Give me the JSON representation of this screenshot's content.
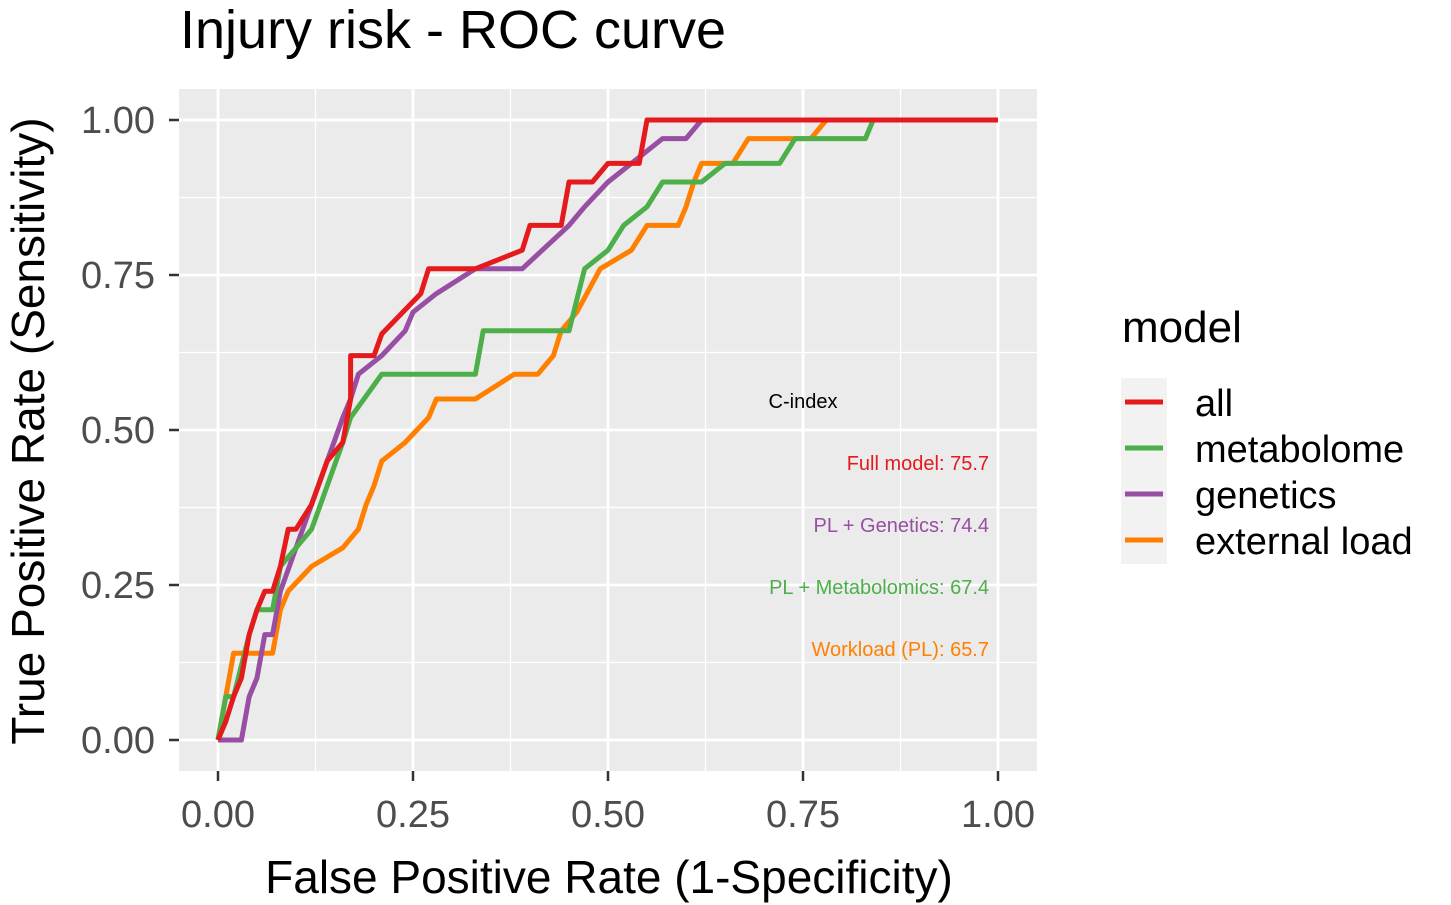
{
  "chart_data": {
    "type": "line",
    "title": "Injury risk - ROC curve",
    "xlabel": "False Positive Rate (1-Specificity)",
    "ylabel": "True Positive Rate (Sensitivity)",
    "xlim": [
      -0.05,
      1.05
    ],
    "ylim": [
      -0.05,
      1.05
    ],
    "xticks": [
      "0.00",
      "0.25",
      "0.50",
      "0.75",
      "1.00"
    ],
    "yticks": [
      "0.00",
      "0.25",
      "0.50",
      "0.75",
      "1.00"
    ],
    "grid": true,
    "legend": {
      "title": "model",
      "position": "right"
    },
    "series": [
      {
        "name": "all",
        "color": "#E41A1C",
        "x": [
          0,
          0.01,
          0.02,
          0.03,
          0.04,
          0.05,
          0.06,
          0.07,
          0.08,
          0.09,
          0.1,
          0.12,
          0.14,
          0.16,
          0.17,
          0.17,
          0.2,
          0.21,
          0.21,
          0.26,
          0.27,
          0.3,
          0.33,
          0.39,
          0.4,
          0.44,
          0.45,
          0.48,
          0.5,
          0.54,
          0.55,
          0.6,
          1.0
        ],
        "y": [
          0,
          0.03,
          0.07,
          0.1,
          0.17,
          0.21,
          0.24,
          0.24,
          0.28,
          0.34,
          0.34,
          0.38,
          0.45,
          0.48,
          0.55,
          0.62,
          0.62,
          0.655,
          0.655,
          0.72,
          0.76,
          0.76,
          0.76,
          0.79,
          0.83,
          0.83,
          0.9,
          0.9,
          0.93,
          0.93,
          1.0,
          1.0,
          1.0
        ]
      },
      {
        "name": "metabolome",
        "color": "#4DAF4A",
        "x": [
          0,
          0.01,
          0.02,
          0.04,
          0.05,
          0.07,
          0.08,
          0.1,
          0.12,
          0.14,
          0.16,
          0.17,
          0.21,
          0.33,
          0.34,
          0.45,
          0.47,
          0.5,
          0.52,
          0.55,
          0.57,
          0.6,
          0.62,
          0.65,
          0.68,
          0.72,
          0.74,
          0.75,
          0.83,
          0.84,
          1.0
        ],
        "y": [
          0,
          0.07,
          0.07,
          0.17,
          0.21,
          0.21,
          0.28,
          0.31,
          0.34,
          0.41,
          0.48,
          0.52,
          0.59,
          0.59,
          0.66,
          0.66,
          0.76,
          0.79,
          0.83,
          0.86,
          0.9,
          0.9,
          0.9,
          0.93,
          0.93,
          0.93,
          0.97,
          0.97,
          0.97,
          1.0,
          1.0
        ]
      },
      {
        "name": "genetics",
        "color": "#984EA3",
        "x": [
          0,
          0.03,
          0.04,
          0.05,
          0.06,
          0.07,
          0.08,
          0.1,
          0.12,
          0.14,
          0.16,
          0.17,
          0.18,
          0.21,
          0.24,
          0.25,
          0.28,
          0.33,
          0.39,
          0.45,
          0.47,
          0.5,
          0.53,
          0.57,
          0.6,
          0.62,
          0.79,
          1.0
        ],
        "y": [
          0,
          0,
          0.07,
          0.1,
          0.17,
          0.17,
          0.24,
          0.31,
          0.38,
          0.45,
          0.52,
          0.55,
          0.59,
          0.62,
          0.66,
          0.69,
          0.72,
          0.76,
          0.76,
          0.83,
          0.86,
          0.9,
          0.93,
          0.97,
          0.97,
          1.0,
          1.0,
          1.0
        ]
      },
      {
        "name": "external load",
        "color": "#FF7F00",
        "x": [
          0,
          0.01,
          0.02,
          0.07,
          0.08,
          0.09,
          0.12,
          0.16,
          0.18,
          0.19,
          0.2,
          0.21,
          0.24,
          0.27,
          0.28,
          0.31,
          0.33,
          0.38,
          0.41,
          0.43,
          0.44,
          0.46,
          0.49,
          0.53,
          0.55,
          0.59,
          0.6,
          0.61,
          0.62,
          0.66,
          0.68,
          0.76,
          0.78,
          0.84,
          1.0
        ],
        "y": [
          0,
          0.07,
          0.14,
          0.14,
          0.21,
          0.24,
          0.28,
          0.31,
          0.34,
          0.38,
          0.41,
          0.45,
          0.48,
          0.52,
          0.55,
          0.55,
          0.55,
          0.59,
          0.59,
          0.62,
          0.66,
          0.69,
          0.76,
          0.79,
          0.83,
          0.83,
          0.86,
          0.9,
          0.93,
          0.93,
          0.97,
          0.97,
          1.0,
          1.0,
          1.0
        ]
      }
    ],
    "annotations": [
      {
        "text": "C-index",
        "color": "#000000"
      },
      {
        "text": "Full model:  75.7",
        "color": "#E41A1C"
      },
      {
        "text": "PL + Genetics:  74.4",
        "color": "#984EA3"
      },
      {
        "text": "PL + Metabolomics:  67.4",
        "color": "#4DAF4A"
      },
      {
        "text": "Workload (PL): 65.7",
        "color": "#FF7F00"
      }
    ]
  }
}
